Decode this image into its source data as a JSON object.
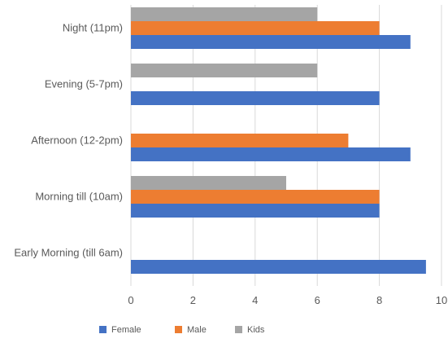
{
  "chart_data": {
    "type": "bar",
    "orientation": "horizontal",
    "categories": [
      "Night (11pm)",
      "Evening (5-7pm)",
      "Afternoon (12-2pm)",
      "Morning till (10am)",
      "Early Morning (till 6am)"
    ],
    "series": [
      {
        "name": "Female",
        "color": "#4472C4",
        "values": [
          9,
          8,
          9,
          8,
          9.5
        ]
      },
      {
        "name": "Male",
        "color": "#ED7D31",
        "values": [
          8,
          0,
          7,
          8,
          0
        ]
      },
      {
        "name": "Kids",
        "color": "#A5A5A5",
        "values": [
          6,
          6,
          0,
          5,
          0
        ]
      }
    ],
    "xlim": [
      0,
      10
    ],
    "x_ticks": [
      "0",
      "2",
      "4",
      "6",
      "8",
      "10"
    ],
    "grid": "vertical",
    "legend_position": "bottom",
    "title": "",
    "xlabel": "",
    "ylabel": ""
  }
}
